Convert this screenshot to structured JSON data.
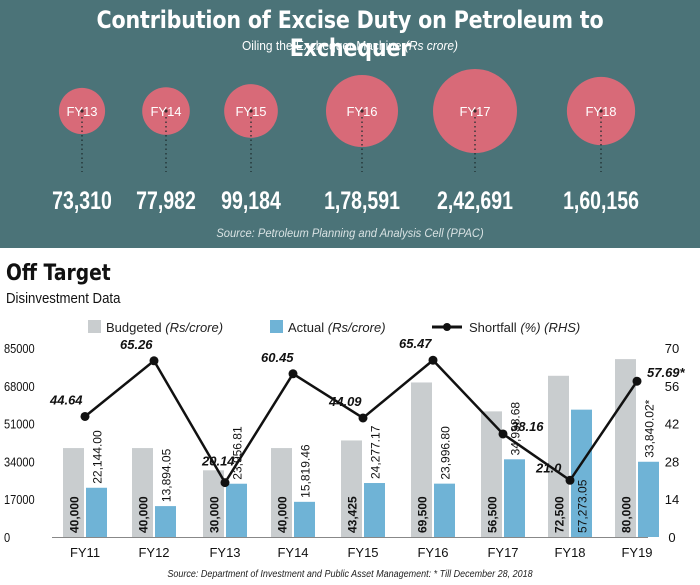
{
  "header": {
    "title": "Contribution of Excise Duty on Petroleum to Exchequer",
    "subtitle_main": "Oiling the Exchequer Machine ",
    "subtitle_unit": "(Rs crore)",
    "source": "Source: Petroleum Planning and Analysis Cell (PPAC)"
  },
  "bottom": {
    "title": "Off Target",
    "subtitle": "Disinvestment Data",
    "source": "Source: Department of Investment and Public Asset Management: * Till December 28, 2018"
  },
  "colors": {
    "panel_bg": "#4b7378",
    "bubble": "#d86a78",
    "budgeted": "#c9cdcf",
    "actual": "#6fb3d6",
    "shortfall": "#111111"
  },
  "chart_data": [
    {
      "type": "bubble",
      "title": "Contribution of Excise Duty on Petroleum to Exchequer",
      "subtitle": "Oiling the Exchequer Machine (Rs crore)",
      "categories": [
        "FY13",
        "FY14",
        "FY15",
        "FY16",
        "FY17",
        "FY18"
      ],
      "values": [
        73310,
        77982,
        99184,
        178591,
        242691,
        160156
      ],
      "value_labels": [
        "73,310",
        "77,982",
        "99,184",
        "1,78,591",
        "2,42,691",
        "1,60,156"
      ]
    },
    {
      "type": "bar",
      "title": "Off Target",
      "subtitle": "Disinvestment Data",
      "categories": [
        "FY11",
        "FY12",
        "FY13",
        "FY14",
        "FY15",
        "FY16",
        "FY17",
        "FY18",
        "FY19"
      ],
      "series": [
        {
          "name": "Budgeted",
          "legend_main": "Budgeted ",
          "legend_unit": "(Rs/crore)",
          "values": [
            40000,
            40000,
            30000,
            40000,
            43425,
            69500,
            56500,
            72500,
            80000
          ],
          "labels": [
            "40,000",
            "40,000",
            "30,000",
            "40,000",
            "43,425",
            "69,500",
            "56,500",
            "72,500",
            "80,000"
          ]
        },
        {
          "name": "Actual",
          "legend_main": "Actual ",
          "legend_unit": "(Rs/crore)",
          "values": [
            22144,
            13894.05,
            23956.81,
            15819.46,
            24277.17,
            23996.8,
            34938.68,
            57273.05,
            33840.02
          ],
          "labels": [
            "22,144.00",
            "13,894.05",
            "23,956.81",
            "15,819.46",
            "24,277.17",
            "23,996.80",
            "34,938.68",
            "57,273.05",
            "33,840.02*"
          ]
        },
        {
          "name": "Shortfall",
          "legend_main": "Shortfall ",
          "legend_unit": "(%) (RHS)",
          "type": "line",
          "axis": "right",
          "values": [
            44.64,
            65.26,
            20.14,
            60.45,
            44.09,
            65.47,
            38.16,
            21.0,
            57.69
          ],
          "labels": [
            "44.64",
            "65.26",
            "20.14",
            "60.45",
            "44.09",
            "65.47",
            "38.16",
            "21.0",
            "57.69*"
          ]
        }
      ],
      "y_left": {
        "ylim": [
          0,
          85000
        ],
        "ticks": [
          0,
          17000,
          34000,
          51000,
          68000,
          85000
        ]
      },
      "y_right": {
        "ylim": [
          0,
          70
        ],
        "ticks": [
          0,
          14,
          28,
          42,
          56,
          70
        ]
      }
    }
  ]
}
